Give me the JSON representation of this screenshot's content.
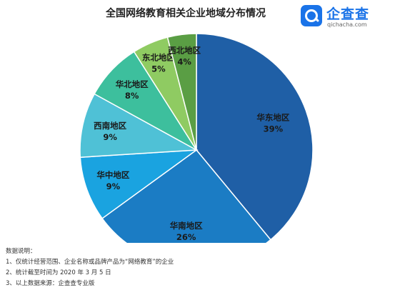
{
  "header": {
    "title": "全国网络教育相关企业地域分布情况"
  },
  "logo": {
    "name": "企查查",
    "url": "qichacha.com",
    "icon": "qichacha-logo-icon"
  },
  "chart_data": {
    "type": "pie",
    "title": "全国网络教育相关企业地域分布情况",
    "unit": "%",
    "slices": [
      {
        "label": "华东地区",
        "value": 39,
        "display": "39%",
        "color": "#1f5fa6"
      },
      {
        "label": "华南地区",
        "value": 26,
        "display": "26%",
        "color": "#1b7cc4"
      },
      {
        "label": "华中地区",
        "value": 9,
        "display": "9%",
        "color": "#1aa3e0"
      },
      {
        "label": "西南地区",
        "value": 9,
        "display": "9%",
        "color": "#4fc1d6"
      },
      {
        "label": "华北地区",
        "value": 8,
        "display": "8%",
        "color": "#3dbf9d"
      },
      {
        "label": "东北地区",
        "value": 5,
        "display": "5%",
        "color": "#8fcb62"
      },
      {
        "label": "西北地区",
        "value": 4,
        "display": "4%",
        "color": "#5a9e44"
      }
    ]
  },
  "notes": {
    "heading": "数据说明：",
    "items": [
      "1、仅统计经营范围、企业名称或品牌产品为“网络教育”的企业",
      "2、统计截至时间为 2020 年 3 月 5 日",
      "3、以上数据来源：企查查专业版"
    ]
  }
}
